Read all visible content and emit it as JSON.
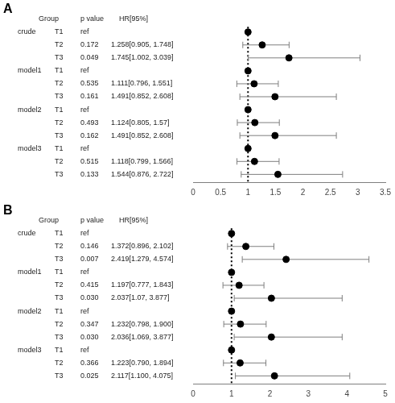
{
  "chart_data": [
    {
      "type": "forest",
      "title": "A",
      "columns": [
        "Group",
        "p value",
        "HR[95%]"
      ],
      "groups": [
        "crude",
        null,
        null,
        "model1",
        null,
        null,
        "model2",
        null,
        null,
        "model3",
        null,
        null
      ],
      "categories": [
        "T1",
        "T2",
        "T3",
        "T1",
        "T2",
        "T3",
        "T1",
        "T2",
        "T3",
        "T1",
        "T2",
        "T3"
      ],
      "p_values": [
        "ref",
        "0.172",
        "0.049",
        "ref",
        "0.535",
        "0.161",
        "ref",
        "0.493",
        "0.162",
        "ref",
        "0.515",
        "0.133"
      ],
      "hr_labels": [
        null,
        "1.258[0.905, 1.748]",
        "1.745[1.002, 3.039]",
        null,
        "1.111[0.796, 1.551]",
        "1.491[0.852, 2.608]",
        null,
        "1.124[0.805, 1.57]",
        "1.491[0.852, 2.608]",
        null,
        "1.118[0.799, 1.566]",
        "1.544[0.876, 2.722]"
      ],
      "values": [
        1,
        1.258,
        1.745,
        1,
        1.111,
        1.491,
        1,
        1.124,
        1.491,
        1,
        1.118,
        1.544
      ],
      "ci_lower": [
        null,
        0.905,
        1.002,
        null,
        0.796,
        0.852,
        null,
        0.805,
        0.852,
        null,
        0.799,
        0.876
      ],
      "ci_upper": [
        null,
        1.748,
        3.039,
        null,
        1.551,
        2.608,
        null,
        1.57,
        2.608,
        null,
        1.566,
        2.722
      ],
      "reference_line": 1,
      "xlim": [
        0,
        3.5
      ],
      "xticks": [
        0,
        0.5,
        1,
        1.5,
        2,
        2.5,
        3,
        3.5
      ],
      "color": "#000000",
      "grid": false
    },
    {
      "type": "forest",
      "title": "B",
      "columns": [
        "Group",
        "p value",
        "HR[95%]"
      ],
      "groups": [
        "crude",
        null,
        null,
        "model1",
        null,
        null,
        "model2",
        null,
        null,
        "model3",
        null,
        null
      ],
      "categories": [
        "T1",
        "T2",
        "T3",
        "T1",
        "T2",
        "T3",
        "T1",
        "T2",
        "T3",
        "T1",
        "T2",
        "T3"
      ],
      "p_values": [
        "ref",
        "0.146",
        "0.007",
        "ref",
        "0.415",
        "0.030",
        "ref",
        "0.347",
        "0.030",
        "ref",
        "0.366",
        "0.025"
      ],
      "hr_labels": [
        null,
        "1.372[0.896, 2.102]",
        "2.419[1.279, 4.574]",
        null,
        "1.197[0.777, 1.843]",
        "2.037[1.07, 3.877]",
        null,
        "1.232[0.798, 1.900]",
        "2.036[1.069, 3.877]",
        null,
        "1.223[0.790, 1.894]",
        "2.117[1.100, 4.075]"
      ],
      "values": [
        1,
        1.372,
        2.419,
        1,
        1.197,
        2.037,
        1,
        1.232,
        2.036,
        1,
        1.223,
        2.117
      ],
      "ci_lower": [
        null,
        0.896,
        1.279,
        null,
        0.777,
        1.07,
        null,
        0.798,
        1.069,
        null,
        0.79,
        1.1
      ],
      "ci_upper": [
        null,
        2.102,
        4.574,
        null,
        1.843,
        3.877,
        null,
        1.9,
        3.877,
        null,
        1.894,
        4.075
      ],
      "reference_line": 1,
      "xlim": [
        0,
        5
      ],
      "xticks": [
        0,
        1,
        2,
        3,
        4,
        5
      ],
      "color": "#000000",
      "grid": false
    }
  ]
}
